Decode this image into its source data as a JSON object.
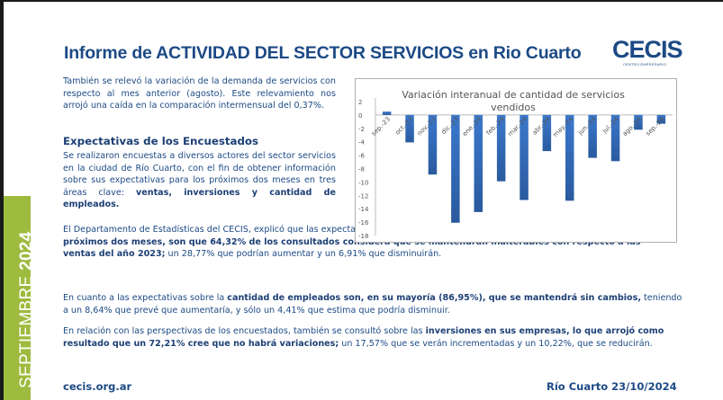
{
  "side_label": {
    "month": "SEPTIEMBRE",
    "year": "2024"
  },
  "header": {
    "title": "Informe de ACTIVIDAD DEL SECTOR SERVICIOS en Rio Cuarto",
    "logo_text": "CECIS",
    "logo_subtext": "CENTRO EMPRESARIO"
  },
  "intro": {
    "text": "También se relevó la variación de la demanda de servicios con respecto al mes anterior (agosto). Este relevamiento nos arrojó una caída en la comparación intermensual del 0,37%."
  },
  "section": {
    "heading": "Expectativas de los Encuestados",
    "p1_normal": "Se realizaron encuestas a diversos actores del sector servicios en la ciudad de Río Cuarto, con el fin de obtener información sobre sus expectativas para los próximos dos meses en tres áreas clave: ",
    "p1_bold": "ventas, inversiones y cantidad de empleados.",
    "p2_normal_a": "El Departamento de Estadísticas del CECIS, explicó que las expectativas de los empresarios de este sector, acerca de ",
    "p2_bold": "las ventas de los próximos dos meses, son que 64,32% de los consultados considera que se mantendrán inalterables con respecto a las ventas del año 2023;",
    "p2_normal_b": " un 28,77% que podrían aumentar y un 6,91% que disminuirán.",
    "p3_normal_a": "En cuanto a las expectativas sobre la ",
    "p3_bold": "cantidad de empleados son, en su mayoría (86,95%), que se mantendrá sin cambios,",
    "p3_normal_b": " teniendo a un 8,64% que prevé que aumentaría, y sólo un 4,41% que estima que podría disminuir.",
    "p4_normal_a": "En relación con las perspectivas de los encuestados, también se consultó sobre las ",
    "p4_bold": "inversiones en sus empresas, lo que arrojó como resultado que un 72,21% cree que no habrá variaciones;",
    "p4_normal_b": " un 17,57% que se verán incrementadas y un 10,22%, que se reducirán."
  },
  "footer": {
    "website": "cecis.org.ar",
    "place_date": "Río Cuarto 23/10/2024"
  },
  "chart_data": {
    "type": "bar",
    "title": "Variación interanual de cantidad de servicios vendidos",
    "xlabel": "",
    "ylabel": "",
    "categories": [
      "sep.-23",
      "oct.-23",
      "nov.-23",
      "dic.-23",
      "ene.-24",
      "feb.-24",
      "mar.-24",
      "abr.-24",
      "may.-24",
      "jun.-24",
      "jul.-24",
      "ago.-24",
      "sep.-24"
    ],
    "values": [
      0.5,
      -4.1,
      -8.9,
      -16.1,
      -14.5,
      -9.9,
      -12.7,
      -5.4,
      -12.8,
      -6.4,
      -6.9,
      -2.2,
      -1.3
    ],
    "ylim": [
      -18,
      2
    ],
    "yticks": [
      2,
      0,
      -2,
      -4,
      -6,
      -8,
      -10,
      -12,
      -14,
      -16,
      -18
    ],
    "grid": false,
    "legend": "none",
    "bar_color": "#3366b0"
  }
}
